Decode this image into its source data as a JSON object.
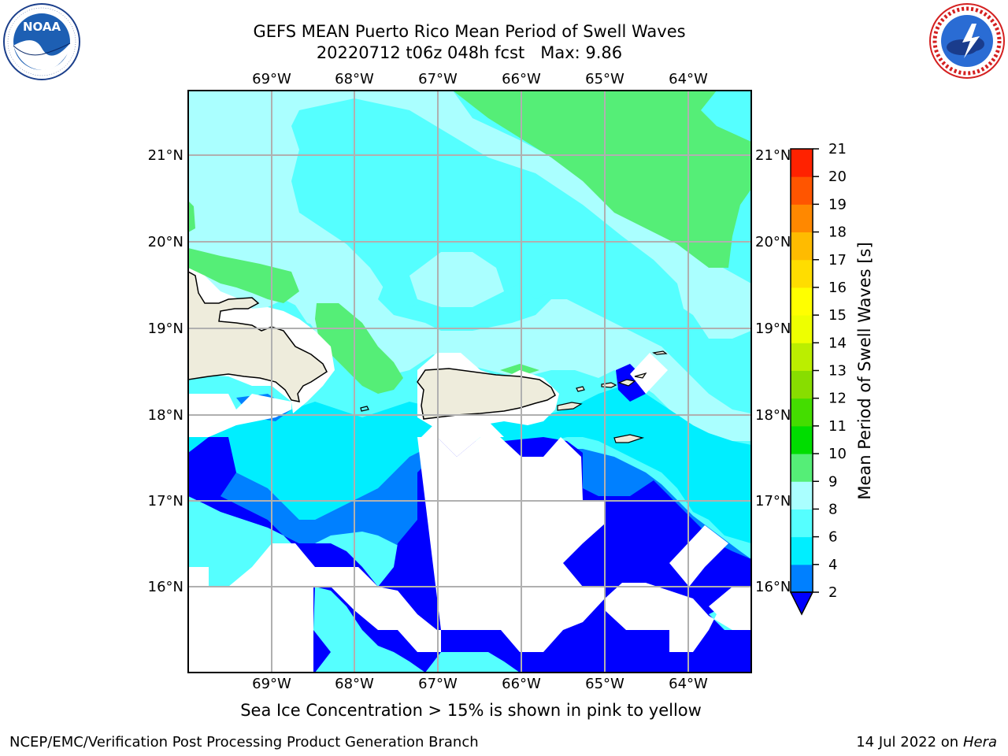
{
  "header": {
    "title_line1": "GEFS MEAN Puerto Rico Mean Period of Swell Waves",
    "title_line2": "20220712 t06z 048h fcst   Max: 9.86"
  },
  "logos": {
    "left": {
      "text": "NOAA",
      "ring_text": "NATIONAL OCEANIC AND ATMOSPHERIC ADMINISTRATION · U.S. DEPARTMENT OF COMMERCE",
      "icon": "noaa-logo"
    },
    "right": {
      "ring_text": "NATIONAL WEATHER SERVICE",
      "icon": "nws-logo"
    }
  },
  "map": {
    "lon_labels": [
      "69°W",
      "68°W",
      "67°W",
      "66°W",
      "65°W",
      "64°W"
    ],
    "lat_labels": [
      "21°N",
      "20°N",
      "19°N",
      "18°N",
      "17°N",
      "16°N"
    ]
  },
  "colorbar": {
    "label": "Mean Period of Swell Waves [s]",
    "ticks": [
      "2",
      "4",
      "6",
      "8",
      "9",
      "10",
      "11",
      "12",
      "13",
      "14",
      "15",
      "16",
      "17",
      "18",
      "19",
      "20",
      "21"
    ],
    "colors": [
      "#0000ff",
      "#0080ff",
      "#00eeff",
      "#55ffff",
      "#aaffff",
      "#55ee77",
      "#00dd00",
      "#44dd00",
      "#88dd00",
      "#bbee00",
      "#eeff00",
      "#ffff00",
      "#ffdd00",
      "#ffbb00",
      "#ff8800",
      "#ff5500",
      "#ff2200",
      "#ff0000"
    ]
  },
  "caption": "Sea Ice Concentration > 15% is shown in pink to yellow",
  "footer": {
    "left": "NCEP/EMC/Verification Post Processing Product Generation Branch",
    "right_date": "14 Jul 2022 on ",
    "right_host": "Hera"
  }
}
